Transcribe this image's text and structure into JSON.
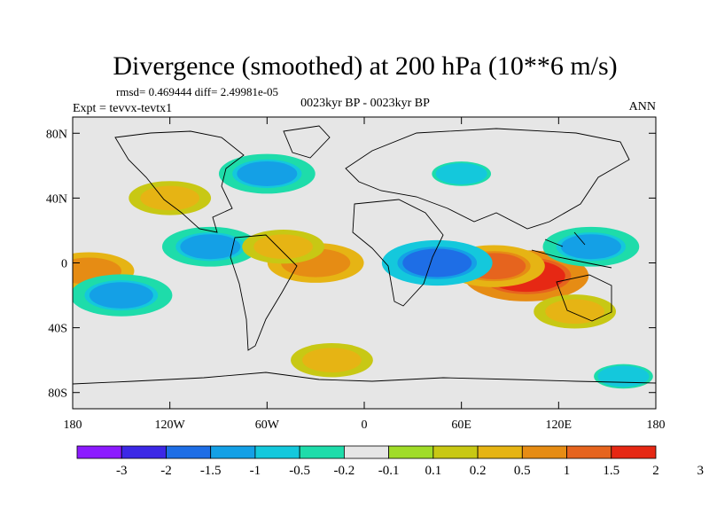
{
  "title": "Divergence (smoothed) at 200 hPa (10**6 m/s)",
  "stats_line": "rmsd= 0.469444  diff= 2.49981e-05",
  "expt_label": "Expt = tevvx-tevtx1",
  "period_label": "0023kyr BP - 0023kyr BP",
  "season_label": "ANN",
  "map": {
    "projection": "cylindrical-equidistant",
    "lon_range": [
      -180,
      180
    ],
    "lat_range": [
      -90,
      90
    ],
    "lat_ticks": [
      {
        "value": 80,
        "label": "80N"
      },
      {
        "value": 40,
        "label": "40N"
      },
      {
        "value": 0,
        "label": "0"
      },
      {
        "value": -40,
        "label": "40S"
      },
      {
        "value": -80,
        "label": "80S"
      }
    ],
    "lon_ticks": [
      {
        "value": -180,
        "label": "180"
      },
      {
        "value": -120,
        "label": "120W"
      },
      {
        "value": -60,
        "label": "60W"
      },
      {
        "value": 0,
        "label": "0"
      },
      {
        "value": 60,
        "label": "60E"
      },
      {
        "value": 120,
        "label": "120E"
      },
      {
        "value": 180,
        "label": "180"
      }
    ]
  },
  "colorbar": {
    "colors": [
      "#8c1aff",
      "#3c28e6",
      "#1e6ee6",
      "#14a0e6",
      "#14c8dc",
      "#1edcaa",
      "#e6e6e6",
      "#a0dc28",
      "#c8c814",
      "#e6b414",
      "#e68c14",
      "#e6641e",
      "#e62814"
    ],
    "labels": [
      "-3",
      "-2",
      "-1.5",
      "-1",
      "-0.5",
      "-0.2",
      "-0.1",
      "0.1",
      "0.2",
      "0.5",
      "1",
      "1.5",
      "2",
      "3"
    ]
  },
  "chart_data": {
    "type": "heatmap",
    "title": "Divergence (smoothed) at 200 hPa (10**6 m/s)",
    "levels": [
      -3,
      -2,
      -1.5,
      -1,
      -0.5,
      -0.2,
      -0.1,
      0.1,
      0.2,
      0.5,
      1,
      1.5,
      2,
      3
    ],
    "features": [
      {
        "lon": 100,
        "lat": -8,
        "value": 2.0
      },
      {
        "lon": 80,
        "lat": -2,
        "value": 1.2
      },
      {
        "lon": -30,
        "lat": 0,
        "value": 1.0
      },
      {
        "lon": -170,
        "lat": -5,
        "value": 0.8
      },
      {
        "lon": 45,
        "lat": 0,
        "value": -1.5
      },
      {
        "lon": 140,
        "lat": 10,
        "value": -1.0
      },
      {
        "lon": -150,
        "lat": -20,
        "value": -1.2
      },
      {
        "lon": -95,
        "lat": 10,
        "value": -1.0
      },
      {
        "lon": -60,
        "lat": 55,
        "value": -1.0
      },
      {
        "lon": 60,
        "lat": 55,
        "value": -0.5
      },
      {
        "lon": -50,
        "lat": 10,
        "value": 0.5
      },
      {
        "lon": 130,
        "lat": -30,
        "value": 0.5
      },
      {
        "lon": -120,
        "lat": 40,
        "value": 0.5
      },
      {
        "lon": -20,
        "lat": -60,
        "value": 0.5
      },
      {
        "lon": 160,
        "lat": -70,
        "value": -0.5
      }
    ]
  }
}
